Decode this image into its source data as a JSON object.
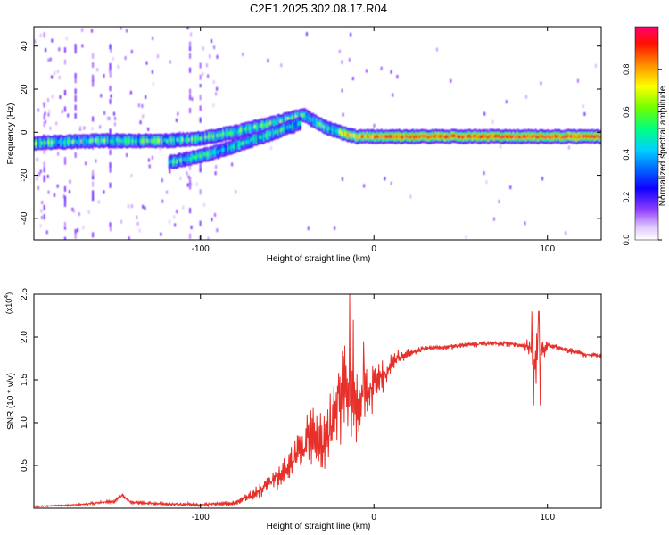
{
  "figure": {
    "title": "C2E1.2025.302.08.17.R04"
  },
  "chart_data": [
    {
      "type": "heatmap",
      "name": "spectrogram",
      "xlabel": "Height of straight line (km)",
      "ylabel": "Frequency (Hz)",
      "xlim": [
        -196,
        131
      ],
      "ylim": [
        -50,
        49
      ],
      "xticks": [
        -100,
        0,
        100
      ],
      "yticks": [
        -40,
        -20,
        0,
        20,
        40
      ],
      "ridge": {
        "description_points_x": [
          -196,
          -160,
          -120,
          -100,
          -80,
          -60,
          -45,
          -40,
          -30,
          -20,
          -10,
          0,
          20,
          50,
          80,
          90,
          100,
          131
        ],
        "main_branch_y": [
          -5,
          -4,
          -4,
          -3,
          0,
          4,
          7,
          8,
          3,
          0,
          -2,
          -2,
          -2,
          -2,
          -2,
          -2,
          -2,
          -2
        ],
        "lower_branch_x": [
          -118,
          -105,
          -90,
          -75,
          -60,
          -50,
          -42
        ],
        "lower_branch_y": [
          -14,
          -12,
          -9,
          -5,
          -1,
          2,
          4
        ]
      },
      "colorbar": {
        "label": "Normalized spectral amplitude",
        "range": [
          0,
          1
        ],
        "ticks": [
          "0.0",
          "0.2",
          "0.4",
          "0.6",
          "0.8"
        ],
        "colors": [
          "#ffffff",
          "#c8a0ff",
          "#7000ff",
          "#0000ff",
          "#00c8ff",
          "#00ff60",
          "#a0ff00",
          "#ffff00",
          "#ff9000",
          "#ff0000",
          "#ff0060"
        ]
      }
    },
    {
      "type": "line",
      "name": "snr",
      "xlabel": "Height of straight line (km)",
      "ylabel": "SNR (10 * v/v)",
      "yscale_label": "(x10",
      "yscale_exp": "4",
      "xlim": [
        -196,
        131
      ],
      "ylim": [
        0,
        2.5
      ],
      "xticks": [
        -100,
        0,
        100
      ],
      "yticks": [
        "0.5",
        "1.0",
        "1.5",
        "2.0",
        "2.5"
      ],
      "color": "#e8302a",
      "x": [
        -196,
        -170,
        -150,
        -145,
        -140,
        -120,
        -100,
        -80,
        -70,
        -60,
        -50,
        -45,
        -40,
        -35,
        -30,
        -25,
        -20,
        -15,
        -10,
        -5,
        0,
        5,
        10,
        20,
        30,
        40,
        50,
        60,
        70,
        80,
        85,
        90,
        93,
        95,
        98,
        100,
        110,
        120,
        131
      ],
      "y": [
        0.02,
        0.04,
        0.08,
        0.15,
        0.07,
        0.05,
        0.04,
        0.06,
        0.15,
        0.3,
        0.45,
        0.6,
        0.75,
        0.9,
        0.7,
        1.0,
        1.3,
        1.45,
        1.25,
        1.3,
        1.45,
        1.55,
        1.7,
        1.82,
        1.87,
        1.88,
        1.9,
        1.92,
        1.93,
        1.92,
        1.9,
        1.88,
        1.6,
        2.0,
        1.85,
        1.9,
        1.86,
        1.8,
        1.78
      ],
      "noise_amp": [
        0.01,
        0.01,
        0.02,
        0.02,
        0.02,
        0.02,
        0.02,
        0.03,
        0.06,
        0.1,
        0.15,
        0.2,
        0.25,
        0.3,
        0.35,
        0.4,
        0.45,
        0.5,
        0.4,
        0.3,
        0.25,
        0.2,
        0.12,
        0.05,
        0.03,
        0.03,
        0.03,
        0.03,
        0.03,
        0.03,
        0.04,
        0.1,
        0.35,
        0.3,
        0.1,
        0.04,
        0.03,
        0.03,
        0.03
      ],
      "peaks": [
        {
          "x": -14,
          "y": 2.5
        },
        {
          "x": -12,
          "y": 2.2
        },
        {
          "x": -6,
          "y": 1.95
        },
        {
          "x": 91,
          "y": 2.3
        },
        {
          "x": 95,
          "y": 2.3
        },
        {
          "x": 92,
          "y": 1.2
        },
        {
          "x": 96,
          "y": 1.2
        }
      ]
    }
  ]
}
